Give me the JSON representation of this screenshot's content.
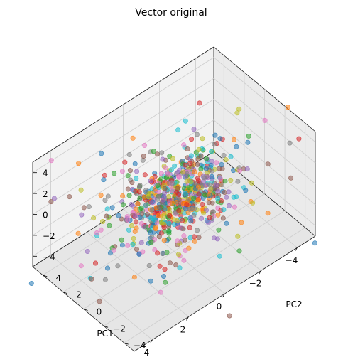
{
  "chart_data": {
    "type": "scatter",
    "projection": "3d",
    "title": "Vector original",
    "xlabel": "PC1",
    "ylabel": "PC2",
    "zlabel": "",
    "xlim": [
      -5,
      5
    ],
    "ylim": [
      -5,
      5
    ],
    "zlim": [
      -5,
      5
    ],
    "xticks": [
      -4,
      -2,
      0,
      2,
      4
    ],
    "yticks": [
      -4,
      -2,
      0,
      2,
      4
    ],
    "zticks": [
      -4,
      -2,
      0,
      2,
      4
    ],
    "xtick_labels": [
      "−4",
      "−2",
      "0",
      "2",
      "4"
    ],
    "ytick_labels": [
      "−4",
      "−2",
      "0",
      "2",
      "4"
    ],
    "ztick_labels": [
      "−4",
      "−2",
      "0",
      "2",
      "4"
    ],
    "grid": true,
    "legend": "none",
    "point_alpha": 0.55,
    "colors": [
      "#1f77b4",
      "#ff7f0e",
      "#2ca02c",
      "#d62728",
      "#9467bd",
      "#8c564b",
      "#e377c2",
      "#7f7f7f",
      "#bcbd22",
      "#17becf"
    ],
    "points_per_color": 75,
    "distribution": "dense isotropic cluster around the origin with sparse outliers out to about ±6 on each axis"
  }
}
